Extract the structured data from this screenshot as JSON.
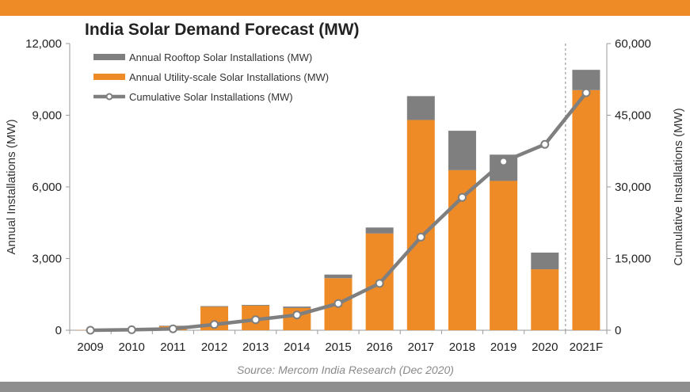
{
  "chart_data": {
    "type": "bar",
    "title": "India Solar Demand Forecast (MW)",
    "source": "Source: Mercom India Research (Dec 2020)",
    "categories": [
      "2009",
      "2010",
      "2011",
      "2012",
      "2013",
      "2014",
      "2015",
      "2016",
      "2017",
      "2018",
      "2019",
      "2020",
      "2021F"
    ],
    "stacked": true,
    "series": [
      {
        "name": "Annual Rooftop Solar Installations (MW)",
        "type": "bar",
        "axis": "left",
        "color": "#7f7f7f",
        "values": [
          0,
          0,
          20,
          30,
          30,
          60,
          150,
          250,
          1000,
          1650,
          1100,
          700,
          850
        ]
      },
      {
        "name": "Annual Utility-scale Solar Installations (MW)",
        "type": "bar",
        "axis": "left",
        "color": "#ee8b26",
        "values": [
          10,
          20,
          170,
          980,
          1030,
          930,
          2180,
          4050,
          8800,
          6700,
          6250,
          2550,
          10050
        ]
      },
      {
        "name": "Cumulative Solar Installations (MW)",
        "type": "line",
        "axis": "right",
        "color": "#7f7f7f",
        "values": [
          0,
          100,
          300,
          1200,
          2200,
          3200,
          5600,
          9800,
          19500,
          27800,
          35300,
          38900,
          49700
        ]
      }
    ],
    "forecast_start": "2021F",
    "ylabel": "Annual Installations (MW)",
    "ylabel_right": "Cumulative Installations (MW)",
    "ylim": [
      0,
      12000
    ],
    "ylim_right": [
      0,
      60000
    ],
    "yticks": [
      "0",
      "3,000",
      "6,000",
      "9,000",
      "12,000"
    ],
    "yticks_right": [
      "0",
      "15,000",
      "30,000",
      "45,000",
      "60,000"
    ],
    "legend_position": "top-left",
    "grid": false
  }
}
